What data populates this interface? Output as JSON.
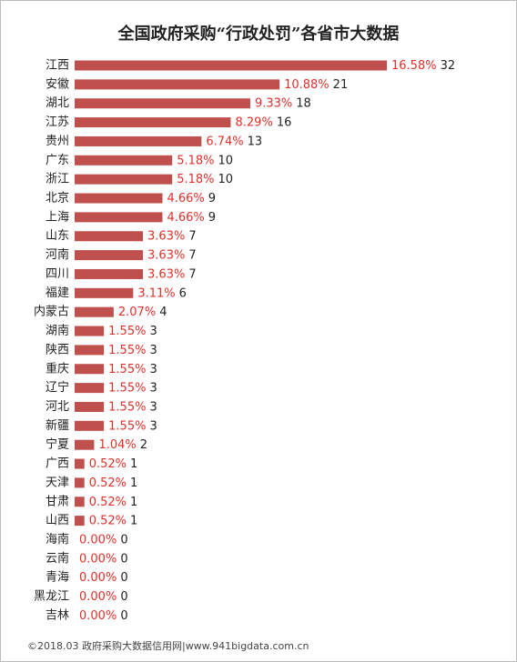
{
  "chart_data": {
    "type": "bar",
    "orientation": "horizontal",
    "title": "全国政府采购“行政处罚”各省市大数据",
    "categories": [
      "江西",
      "安徽",
      "湖北",
      "江苏",
      "贵州",
      "广东",
      "浙江",
      "北京",
      "上海",
      "山东",
      "河南",
      "四川",
      "福建",
      "内蒙古",
      "湖南",
      "陕西",
      "重庆",
      "辽宁",
      "河北",
      "新疆",
      "宁夏",
      "广西",
      "天津",
      "甘肃",
      "山西",
      "海南",
      "云南",
      "青海",
      "黑龙江",
      "吉林"
    ],
    "values": [
      32,
      21,
      18,
      16,
      13,
      10,
      10,
      9,
      9,
      7,
      7,
      7,
      6,
      4,
      3,
      3,
      3,
      3,
      3,
      3,
      2,
      1,
      1,
      1,
      1,
      0,
      0,
      0,
      0,
      0
    ],
    "percent_labels": [
      "16.58%",
      "10.88%",
      "9.33%",
      "8.29%",
      "6.74%",
      "5.18%",
      "5.18%",
      "4.66%",
      "4.66%",
      "3.63%",
      "3.63%",
      "3.63%",
      "3.11%",
      "2.07%",
      "1.55%",
      "1.55%",
      "1.55%",
      "1.55%",
      "1.55%",
      "1.55%",
      "1.04%",
      "0.52%",
      "0.52%",
      "0.52%",
      "0.52%",
      "0.00%",
      "0.00%",
      "0.00%",
      "0.00%",
      "0.00%"
    ],
    "color": "#c0504d",
    "percent_color": "#e0302a",
    "footer": "©2018.03 政府采购大数据信用网|www.941bigdata.com.cn"
  }
}
